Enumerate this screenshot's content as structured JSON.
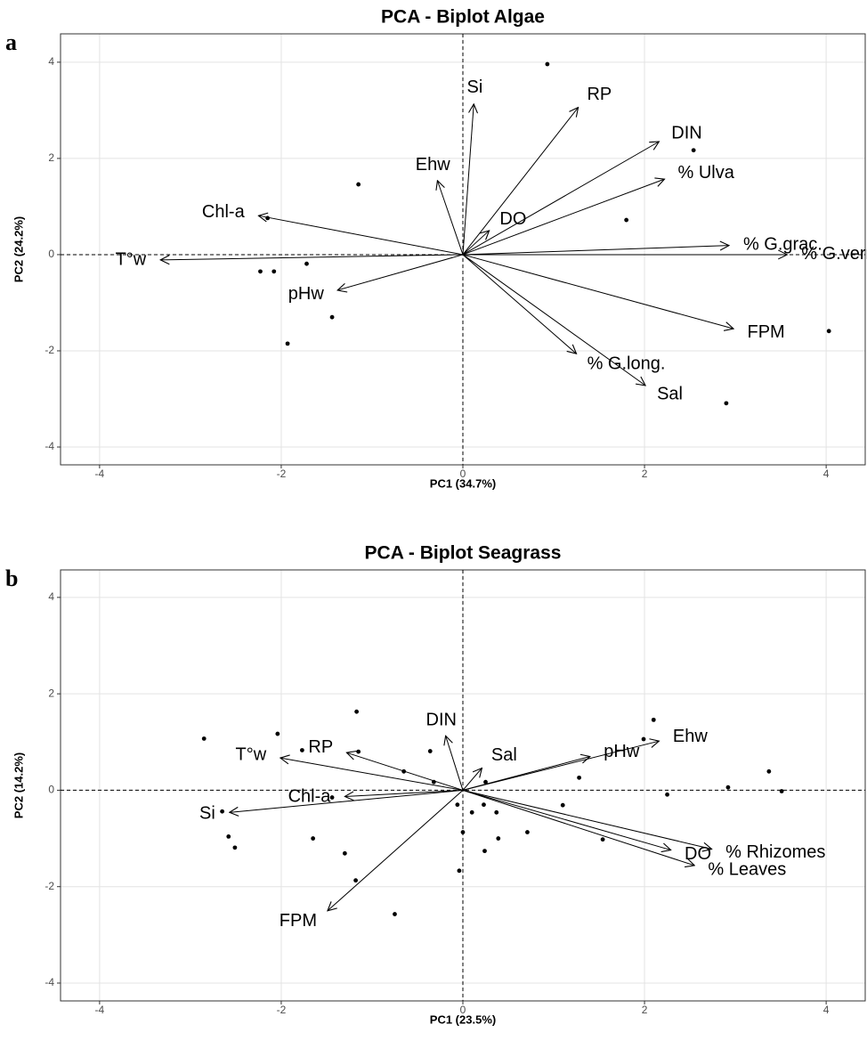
{
  "chart_data": [
    {
      "type": "biplot",
      "panel_label": "a",
      "title": "PCA - Biplot Algae",
      "xlabel": "PC1 (34.7%)",
      "ylabel": "PC2 (24.2%)",
      "xlim": [
        -4.43,
        4.43
      ],
      "ylim": [
        -4.37,
        4.59
      ],
      "xticks": [
        -4,
        -2,
        0,
        2,
        4
      ],
      "yticks": [
        -4,
        -2,
        0,
        2,
        4
      ],
      "grid": true,
      "vline": 0,
      "hline": 0,
      "color": "#000000",
      "points": {
        "x": [
          0.93,
          2.54,
          1.8,
          -1.15,
          -2.15,
          -2.23,
          -2.08,
          -1.72,
          -1.44,
          -1.93,
          4.03,
          2.9
        ],
        "y": [
          3.96,
          2.17,
          0.72,
          1.46,
          0.76,
          -0.35,
          -0.35,
          -0.19,
          -1.3,
          -1.85,
          -1.59,
          -3.09
        ]
      },
      "arrows": [
        {
          "name": "Si",
          "x": 0.12,
          "y": 3.13
        },
        {
          "name": "RP",
          "x": 1.27,
          "y": 3.06
        },
        {
          "name": "DIN",
          "x": 2.16,
          "y": 2.35
        },
        {
          "name": "% Ulva",
          "x": 2.22,
          "y": 1.57
        },
        {
          "name": "Ehw",
          "x": -0.28,
          "y": 1.54
        },
        {
          "name": "DO",
          "x": 0.29,
          "y": 0.5
        },
        {
          "name": "Chl-a",
          "x": -2.25,
          "y": 0.81
        },
        {
          "name": "T°w",
          "x": -3.33,
          "y": -0.11
        },
        {
          "name": "pHw",
          "x": -1.38,
          "y": -0.74
        },
        {
          "name": "% G.grac.",
          "x": 2.93,
          "y": 0.19
        },
        {
          "name": "% G.verm.",
          "x": 3.57,
          "y": 0
        },
        {
          "name": "FPM",
          "x": 2.98,
          "y": -1.54
        },
        {
          "name": "% G.long.",
          "x": 1.25,
          "y": -2.06
        },
        {
          "name": "Sal",
          "x": 2.01,
          "y": -2.72
        }
      ]
    },
    {
      "type": "biplot",
      "panel_label": "b",
      "title": "PCA - Biplot Seagrass",
      "xlabel": "PC1 (23.5%)",
      "ylabel": "PC2 (14.2%)",
      "xlim": [
        -4.43,
        4.43
      ],
      "ylim": [
        -4.37,
        4.57
      ],
      "xticks": [
        -4,
        -2,
        0,
        2,
        4
      ],
      "yticks": [
        -4,
        -2,
        0,
        2,
        4
      ],
      "grid": true,
      "vline": 0,
      "hline": 0,
      "color": "#000000",
      "points": {
        "x": [
          -2.85,
          -2.04,
          -1.17,
          -1.15,
          -1.77,
          -0.36,
          -0.65,
          -0.32,
          0.25,
          2.1,
          1.99,
          1.28,
          3.37,
          2.92,
          3.51,
          2.25,
          -1.44,
          -2.65,
          -2.58,
          -2.51,
          -1.65,
          -1.3,
          -1.18,
          -0.75,
          -0.04,
          0,
          -0.06,
          0.23,
          0.1,
          0.37,
          0.39,
          0.24,
          0.71,
          1.1,
          1.54
        ],
        "y": [
          1.07,
          1.17,
          1.63,
          0.8,
          0.83,
          0.81,
          0.39,
          0.17,
          0.17,
          1.46,
          1.06,
          0.26,
          0.39,
          0.06,
          -0.02,
          -0.09,
          -0.15,
          -0.44,
          -0.96,
          -1.19,
          -1.0,
          -1.31,
          -1.87,
          -2.57,
          -1.67,
          -0.87,
          -0.3,
          -0.3,
          -0.46,
          -0.46,
          -1.0,
          -1.26,
          -0.87,
          -0.31,
          -1.02
        ]
      },
      "arrows": [
        {
          "name": "DIN",
          "x": -0.19,
          "y": 1.13
        },
        {
          "name": "Ehw",
          "x": 2.16,
          "y": 1.02
        },
        {
          "name": "pHw",
          "x": 1.4,
          "y": 0.7
        },
        {
          "name": "Sal",
          "x": 0.21,
          "y": 0.46
        },
        {
          "name": "RP",
          "x": -1.28,
          "y": 0.78
        },
        {
          "name": "T°w",
          "x": -2.01,
          "y": 0.67
        },
        {
          "name": "Chl-a",
          "x": -1.3,
          "y": -0.13
        },
        {
          "name": "Si",
          "x": -2.57,
          "y": -0.46
        },
        {
          "name": "FPM",
          "x": -1.49,
          "y": -2.5
        },
        {
          "name": "% Rhizomes",
          "x": 2.74,
          "y": -1.22
        },
        {
          "name": "DO",
          "x": 2.29,
          "y": -1.24
        },
        {
          "name": "% Leaves",
          "x": 2.55,
          "y": -1.56
        }
      ]
    }
  ]
}
